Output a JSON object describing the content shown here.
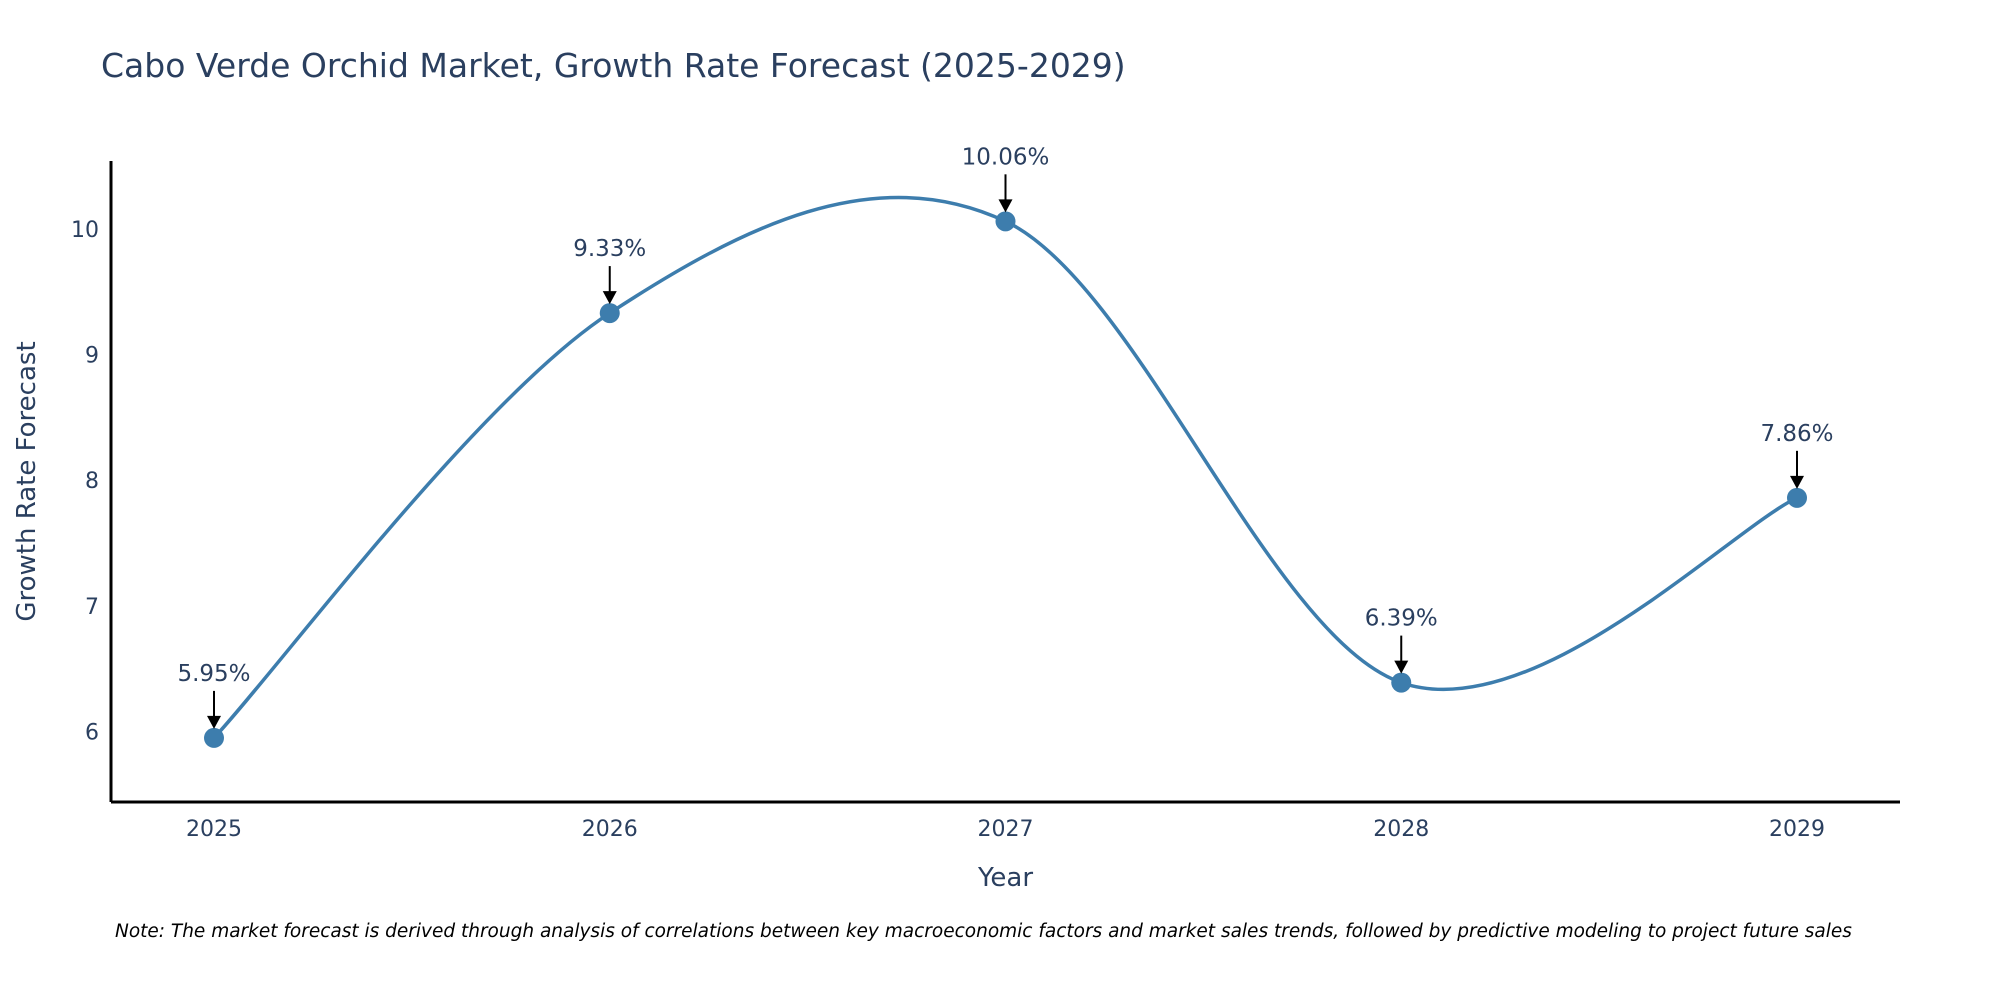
{
  "chart_data": {
    "type": "line",
    "title": "Cabo Verde Orchid Market, Growth Rate Forecast (2025-2029)",
    "xlabel": "Year",
    "ylabel": "Growth Rate Forecast",
    "categories": [
      "2025",
      "2026",
      "2027",
      "2028",
      "2029"
    ],
    "values": [
      5.95,
      9.33,
      10.06,
      6.39,
      7.86
    ],
    "data_labels": [
      "5.95%",
      "9.33%",
      "10.06%",
      "6.39%",
      "7.86%"
    ],
    "y_ticks": [
      6,
      7,
      8,
      9,
      10
    ],
    "ylim": [
      5.44,
      10.54
    ],
    "line_shape": "spline",
    "grid": false,
    "line_color": "#3d7dad",
    "marker_color": "#3d7dad",
    "arrow_color": "#000000",
    "note": "Note: The market forecast is derived through analysis of correlations between key macroeconomic factors and market sales trends, followed by predictive modeling to project future sales"
  }
}
